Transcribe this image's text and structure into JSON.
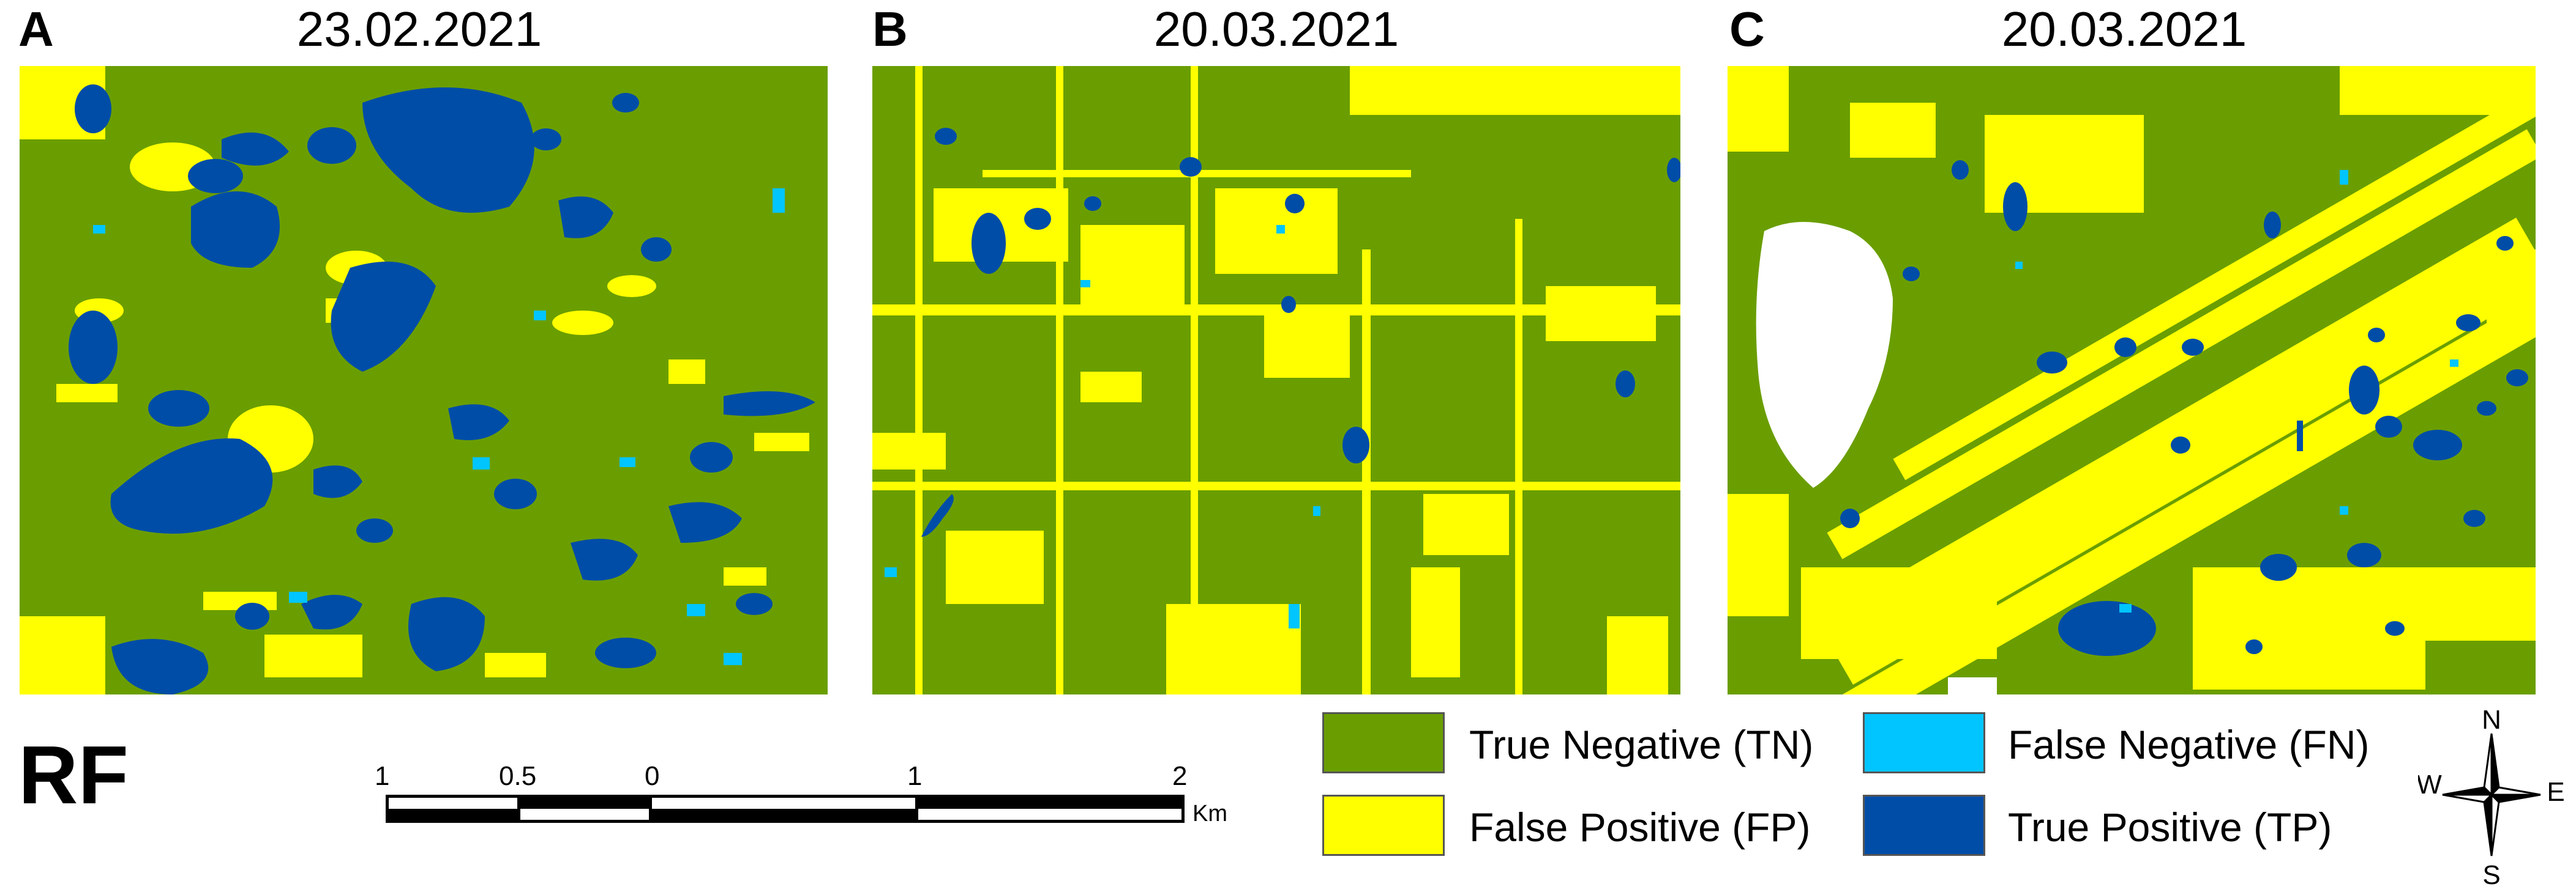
{
  "panels": [
    {
      "letter": "A",
      "date": "23.02.2021"
    },
    {
      "letter": "B",
      "date": "20.03.2021"
    },
    {
      "letter": "C",
      "date": "20.03.2021"
    }
  ],
  "algorithm_label": "RF",
  "scale": {
    "labels": [
      "1",
      "0.5",
      "0",
      "1",
      "2"
    ],
    "unit": "Km"
  },
  "legend": [
    {
      "label": "True Negative (TN)",
      "color": "#6a9e00"
    },
    {
      "label": "False Negative (FN)",
      "color": "#00c5ff"
    },
    {
      "label": "False Positive (FP)",
      "color": "#ffff00"
    },
    {
      "label": "True Positive (TP)",
      "color": "#004da8"
    }
  ],
  "colors": {
    "tn": "#6a9e00",
    "fn": "#00c5ff",
    "fp": "#ffff00",
    "tp": "#004da8",
    "nodata": "#ffffff"
  },
  "compass": {
    "n": "N",
    "s": "S",
    "e": "E",
    "w": "W"
  }
}
